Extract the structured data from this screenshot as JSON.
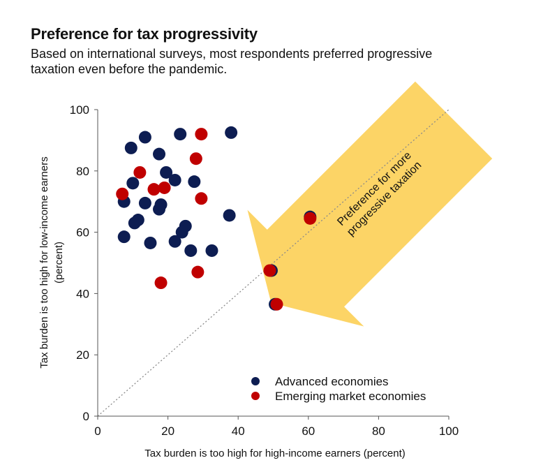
{
  "header": {
    "title": "Preference for tax progressivity",
    "subtitle": "Based on international surveys, most respondents preferred progressive taxation even before the pandemic."
  },
  "annotation": {
    "arrow_text": [
      "Preference for more",
      "progressive taxation"
    ],
    "arrow_color": "#FCD466"
  },
  "chart_data": {
    "type": "scatter",
    "title": "Preference for tax progressivity",
    "subtitle": "Based on international surveys, most respondents preferred progressive taxation even before the pandemic.",
    "xlabel": "Tax burden is too high for high-income earners (percent)",
    "ylabel": [
      "Tax burden is too high for low-income earners",
      "(percent)"
    ],
    "xlim": [
      0,
      100
    ],
    "ylim": [
      0,
      100
    ],
    "xticks": [
      0,
      20,
      40,
      60,
      80,
      100
    ],
    "yticks": [
      0,
      20,
      40,
      60,
      80,
      100
    ],
    "grid": false,
    "reference_line": "45-degree dotted line",
    "legend_position": "bottom-right",
    "series": [
      {
        "name": "Advanced economies",
        "color": "#0D1D52",
        "points": [
          [
            13.5,
            91
          ],
          [
            23.5,
            92
          ],
          [
            38,
            92.5
          ],
          [
            9.5,
            87.5
          ],
          [
            17.5,
            85.5
          ],
          [
            19.5,
            79.5
          ],
          [
            22,
            77
          ],
          [
            27.5,
            76.5
          ],
          [
            10,
            76
          ],
          [
            7.5,
            70
          ],
          [
            13.5,
            69.5
          ],
          [
            18,
            69
          ],
          [
            17.5,
            67.5
          ],
          [
            11.5,
            64
          ],
          [
            10.5,
            63
          ],
          [
            37.5,
            65.5
          ],
          [
            25,
            62
          ],
          [
            24,
            60
          ],
          [
            7.5,
            58.5
          ],
          [
            22,
            57
          ],
          [
            15,
            56.5
          ],
          [
            26.5,
            54
          ],
          [
            32.5,
            54
          ],
          [
            49.5,
            47.5
          ],
          [
            50.5,
            36.5
          ],
          [
            60.5,
            65
          ]
        ]
      },
      {
        "name": "Emerging market economies",
        "color": "#C00000",
        "points": [
          [
            29.5,
            92
          ],
          [
            28,
            84
          ],
          [
            12,
            79.5
          ],
          [
            7,
            72.5
          ],
          [
            16,
            74
          ],
          [
            19,
            74.5
          ],
          [
            29.5,
            71
          ],
          [
            60.5,
            64.5
          ],
          [
            49,
            47.5
          ],
          [
            51,
            36.5
          ],
          [
            18,
            43.5
          ],
          [
            28.5,
            47
          ]
        ]
      }
    ]
  }
}
